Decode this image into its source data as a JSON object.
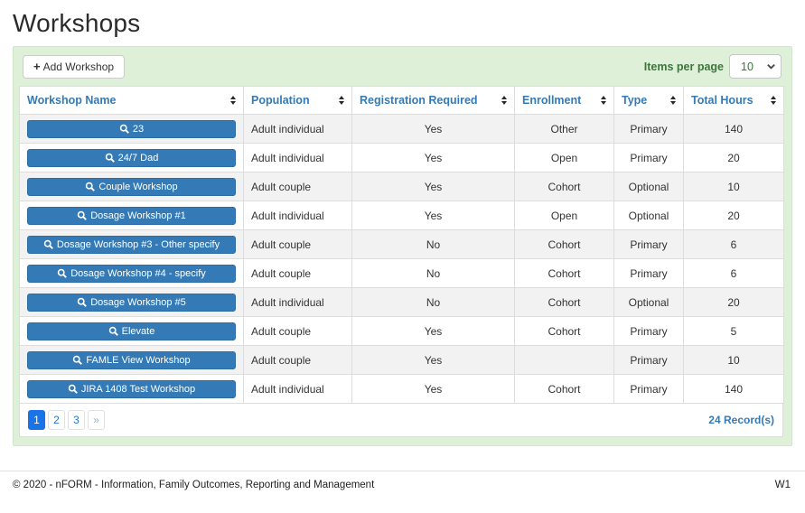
{
  "page": {
    "title": "Workshops"
  },
  "toolbar": {
    "add_button_label": "Add Workshop",
    "items_per_page_label": "Items per page",
    "items_per_page_value": "10",
    "items_per_page_options": [
      "10"
    ]
  },
  "table": {
    "columns": [
      {
        "label": "Workshop Name"
      },
      {
        "label": "Population"
      },
      {
        "label": "Registration Required"
      },
      {
        "label": "Enrollment"
      },
      {
        "label": "Type"
      },
      {
        "label": "Total Hours"
      }
    ],
    "rows": [
      {
        "name": "23",
        "population": "Adult individual",
        "registration_required": "Yes",
        "enrollment": "Other",
        "type": "Primary",
        "total_hours": "140"
      },
      {
        "name": "24/7 Dad",
        "population": "Adult individual",
        "registration_required": "Yes",
        "enrollment": "Open",
        "type": "Primary",
        "total_hours": "20"
      },
      {
        "name": "Couple Workshop",
        "population": "Adult couple",
        "registration_required": "Yes",
        "enrollment": "Cohort",
        "type": "Optional",
        "total_hours": "10"
      },
      {
        "name": "Dosage Workshop #1",
        "population": "Adult individual",
        "registration_required": "Yes",
        "enrollment": "Open",
        "type": "Optional",
        "total_hours": "20"
      },
      {
        "name": "Dosage Workshop #3 - Other specify",
        "population": "Adult couple",
        "registration_required": "No",
        "enrollment": "Cohort",
        "type": "Primary",
        "total_hours": "6"
      },
      {
        "name": "Dosage Workshop #4 - specify",
        "population": "Adult couple",
        "registration_required": "No",
        "enrollment": "Cohort",
        "type": "Primary",
        "total_hours": "6"
      },
      {
        "name": "Dosage Workshop #5",
        "population": "Adult individual",
        "registration_required": "No",
        "enrollment": "Cohort",
        "type": "Optional",
        "total_hours": "20"
      },
      {
        "name": "Elevate",
        "population": "Adult couple",
        "registration_required": "Yes",
        "enrollment": "Cohort",
        "type": "Primary",
        "total_hours": "5"
      },
      {
        "name": "FAMLE View Workshop",
        "population": "Adult couple",
        "registration_required": "Yes",
        "enrollment": "",
        "type": "Primary",
        "total_hours": "10"
      },
      {
        "name": "JIRA 1408 Test Workshop",
        "population": "Adult individual",
        "registration_required": "Yes",
        "enrollment": "Cohort",
        "type": "Primary",
        "total_hours": "140"
      }
    ]
  },
  "pagination": {
    "pages": [
      "1",
      "2",
      "3",
      "»"
    ],
    "active_page": "1",
    "record_count": "24 Record(s)"
  },
  "footer": {
    "copyright": "© 2020 - nFORM - Information, Family Outcomes, Reporting and Management",
    "version": "W1"
  },
  "icons": {
    "add": "plus-icon",
    "workshop_link": "magnifier-icon",
    "sort": "sort-arrows-icon",
    "select": "chevron-down-icon"
  },
  "colors": {
    "panel_background": "#dff0d8",
    "panel_text_green": "#3c763d",
    "header_link_blue": "#337ab7",
    "workshop_button_blue": "#337ab7",
    "workshop_button_border": "#2e6da4",
    "active_page_blue": "#1b73e8",
    "row_stripe_gray": "#f2f2f2",
    "table_border": "#dddddd"
  }
}
